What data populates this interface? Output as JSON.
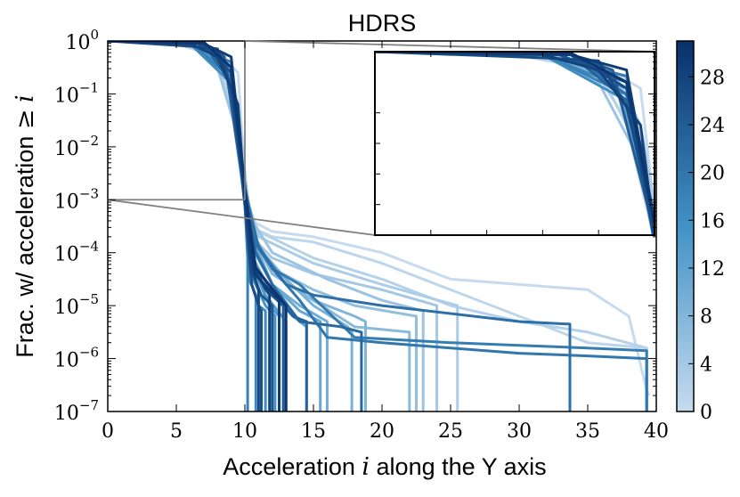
{
  "chart_data": {
    "type": "line",
    "title": "HDRS",
    "xlabel_prefix": "Acceleration ",
    "xlabel_var": "i",
    "xlabel_suffix": " along the Y axis",
    "ylabel_prefix": "Frac. w/ acceleration ",
    "ylabel_rel": "≥",
    "ylabel_var": "i",
    "xlim": [
      0,
      40
    ],
    "ylim_log10": [
      -7,
      0
    ],
    "yscale": "log",
    "grid": false,
    "x_ticks": [
      "0",
      "5",
      "10",
      "15",
      "20",
      "25",
      "30",
      "35",
      "40"
    ],
    "y_ticks": [
      {
        "base": "10",
        "exp": "0"
      },
      {
        "base": "10",
        "exp": "−1"
      },
      {
        "base": "10",
        "exp": "−2"
      },
      {
        "base": "10",
        "exp": "−3"
      },
      {
        "base": "10",
        "exp": "−4"
      },
      {
        "base": "10",
        "exp": "−5"
      },
      {
        "base": "10",
        "exp": "−6"
      },
      {
        "base": "10",
        "exp": "−7"
      }
    ],
    "colorbar": {
      "range": [
        0,
        31
      ],
      "ticks": [
        "0",
        "4",
        "8",
        "12",
        "16",
        "20",
        "24",
        "28"
      ],
      "colormap": "Blues",
      "light_color": "#c6dbef",
      "dark_color": "#08306b"
    },
    "inset": {
      "xlim": [
        0,
        10
      ],
      "ylim_log10": [
        -3,
        0
      ],
      "ticks_labeled": false
    },
    "series_note_count": 31,
    "series": [
      {
        "level": 0,
        "x": [
          0,
          5,
          8,
          9.5,
          10,
          10.5,
          12,
          15,
          20,
          25,
          30,
          35,
          38,
          39.3,
          39.5
        ],
        "y": [
          0,
          -0.05,
          -0.2,
          -0.6,
          -2.6,
          -3.4,
          -3.6,
          -3.7,
          -4.0,
          -4.5,
          -4.6,
          -4.7,
          -5.2,
          -6.6,
          -6.7
        ]
      },
      {
        "level": 1,
        "x": [
          0,
          5,
          8,
          9,
          9.8,
          10.3,
          12,
          15,
          20,
          25,
          30,
          35,
          39.3,
          39.3
        ],
        "y": [
          0,
          -0.05,
          -0.3,
          -1.2,
          -2.7,
          -3.5,
          -3.7,
          -3.8,
          -4.2,
          -4.7,
          -5.2,
          -5.7,
          -5.8,
          -7.0
        ]
      },
      {
        "level": 2,
        "x": [
          0,
          6,
          8,
          9.5,
          10.2,
          11,
          15,
          20,
          25,
          30,
          35,
          39.3,
          39.3
        ],
        "y": [
          0,
          -0.05,
          -0.4,
          -1.5,
          -3.1,
          -3.6,
          -4.1,
          -4.5,
          -5.0,
          -5.3,
          -5.5,
          -5.8,
          -7.0
        ]
      },
      {
        "level": 3,
        "x": [
          0,
          6,
          8.5,
          9.5,
          10.2,
          11,
          15,
          20,
          25.5,
          25.5
        ],
        "y": [
          0,
          -0.02,
          -0.3,
          -1.2,
          -3.0,
          -3.7,
          -4.2,
          -4.6,
          -5.0,
          -7.0
        ]
      },
      {
        "level": 4,
        "x": [
          0,
          7,
          9,
          10,
          10.5,
          12,
          15,
          20,
          24,
          24
        ],
        "y": [
          0,
          -0.05,
          -0.5,
          -2.8,
          -3.7,
          -4.1,
          -4.4,
          -4.7,
          -5.0,
          -7.0
        ]
      },
      {
        "level": 5,
        "x": [
          0,
          6,
          8,
          9.5,
          10.3,
          12,
          16,
          20,
          23,
          23
        ],
        "y": [
          0,
          -0.05,
          -0.5,
          -1.8,
          -3.3,
          -4.0,
          -4.5,
          -4.9,
          -5.1,
          -7.0
        ]
      },
      {
        "level": 6,
        "x": [
          0,
          6,
          8.5,
          9.8,
          10.5,
          12,
          15,
          18,
          22.5,
          22.5
        ],
        "y": [
          0,
          -0.05,
          -0.4,
          -2.4,
          -3.6,
          -4.3,
          -4.7,
          -5.0,
          -5.2,
          -7.0
        ]
      },
      {
        "level": 7,
        "x": [
          0,
          6,
          8.5,
          9.8,
          10.6,
          12,
          15,
          18,
          22,
          22
        ],
        "y": [
          0,
          -0.02,
          -0.3,
          -2.3,
          -3.6,
          -4.4,
          -4.9,
          -5.4,
          -5.5,
          -7.0
        ]
      },
      {
        "level": 8,
        "x": [
          0,
          6,
          9,
          10,
          10.8,
          12,
          15,
          18,
          18.8,
          18.8
        ],
        "y": [
          0,
          -0.05,
          -0.5,
          -2.8,
          -3.8,
          -4.4,
          -4.9,
          -5.2,
          -5.3,
          -7.0
        ]
      },
      {
        "level": 9,
        "x": [
          0,
          7,
          9,
          10,
          11,
          13,
          15,
          17.5,
          17.8,
          17.8
        ],
        "y": [
          0,
          -0.05,
          -0.6,
          -2.9,
          -3.9,
          -4.5,
          -5.0,
          -5.4,
          -5.5,
          -7.0
        ]
      },
      {
        "level": 10,
        "x": [
          0,
          7,
          9,
          10,
          10.7,
          12,
          14,
          16,
          16,
          16
        ],
        "y": [
          0,
          -0.05,
          -0.5,
          -2.8,
          -4.0,
          -4.6,
          -5.0,
          -5.3,
          -5.3,
          -7.0
        ]
      },
      {
        "level": 11,
        "x": [
          0,
          7,
          9,
          10,
          11,
          12,
          14,
          15.5,
          15.5
        ],
        "y": [
          0,
          -0.05,
          -0.6,
          -2.8,
          -4.0,
          -4.6,
          -5.1,
          -5.3,
          -7.0
        ]
      },
      {
        "level": 12,
        "x": [
          0,
          7,
          8.8,
          10,
          10.6,
          12,
          13.5,
          14.5,
          14.5
        ],
        "y": [
          0,
          -0.02,
          -0.7,
          -3.0,
          -4.1,
          -4.8,
          -5.2,
          -5.4,
          -7.0
        ]
      },
      {
        "level": 13,
        "x": [
          0,
          6.5,
          9,
          9.9,
          10.5,
          11.5,
          13,
          13,
          13
        ],
        "y": [
          0,
          -0.03,
          -0.5,
          -2.9,
          -4.2,
          -4.8,
          -5.3,
          -5.3,
          -7.0
        ]
      },
      {
        "level": 14,
        "x": [
          0,
          7,
          9,
          10,
          10.8,
          11.8,
          12.5,
          12.5
        ],
        "y": [
          0,
          -0.05,
          -0.5,
          -2.8,
          -4.4,
          -5.0,
          -5.2,
          -7.0
        ]
      },
      {
        "level": 15,
        "x": [
          0,
          7,
          9,
          10,
          10.6,
          11.5,
          12.2,
          12.2
        ],
        "y": [
          0,
          -0.05,
          -0.6,
          -3.0,
          -4.5,
          -5.0,
          -5.2,
          -7.0
        ]
      },
      {
        "level": 16,
        "x": [
          0,
          6,
          9,
          10,
          10.5,
          11,
          11.5,
          11.5
        ],
        "y": [
          0,
          -0.05,
          -0.8,
          -3.1,
          -4.6,
          -5.0,
          -5.1,
          -7.0
        ]
      },
      {
        "level": 17,
        "x": [
          0,
          6,
          9,
          10,
          10.3,
          10.8,
          10.8
        ],
        "y": [
          0,
          -0.05,
          -0.6,
          -3.0,
          -4.5,
          -4.8,
          -7.0
        ]
      },
      {
        "level": 18,
        "x": [
          0,
          6,
          9,
          10,
          10.2,
          10.2
        ],
        "y": [
          0,
          -0.03,
          -0.7,
          -3.1,
          -4.1,
          -7.0
        ]
      },
      {
        "level": 19,
        "x": [
          0,
          6,
          9,
          9.9,
          10.4,
          12,
          14,
          18,
          25,
          30,
          35,
          39.3,
          39.3
        ],
        "y": [
          0,
          -0.05,
          -0.4,
          -2.5,
          -3.6,
          -4.3,
          -4.6,
          -5.6,
          -5.7,
          -5.75,
          -5.8,
          -5.85,
          -7.0
        ]
      },
      {
        "level": 20,
        "x": [
          0,
          7,
          9,
          10,
          10.7,
          12,
          14,
          16,
          20,
          25,
          30,
          35,
          39.3,
          39.3
        ],
        "y": [
          0,
          -0.05,
          -0.7,
          -3.0,
          -3.8,
          -4.3,
          -4.9,
          -5.6,
          -5.7,
          -5.8,
          -5.9,
          -5.95,
          -6.0,
          -7.0
        ]
      },
      {
        "level": 21,
        "x": [
          0,
          7,
          9,
          10,
          11,
          13,
          15,
          20,
          30,
          33.7,
          33.7
        ],
        "y": [
          0,
          -0.02,
          -0.5,
          -2.8,
          -3.9,
          -4.6,
          -4.8,
          -5.0,
          -5.3,
          -5.35,
          -7.0
        ]
      },
      {
        "level": 22,
        "x": [
          0,
          7,
          9,
          10,
          10.8,
          12,
          14,
          17,
          18.5,
          18.5
        ],
        "y": [
          0,
          -0.05,
          -0.6,
          -2.9,
          -4.0,
          -4.6,
          -5.3,
          -5.4,
          -5.5,
          -7.0
        ]
      },
      {
        "level": 23,
        "x": [
          0,
          7,
          9,
          10,
          10.6,
          12,
          13.5,
          14.5,
          14.5
        ],
        "y": [
          0,
          -0.05,
          -0.8,
          -3.0,
          -4.2,
          -4.7,
          -5.2,
          -5.3,
          -7.0
        ]
      },
      {
        "level": 24,
        "x": [
          0,
          7,
          8.5,
          9.8,
          10.5,
          11.5,
          12.8,
          12.8
        ],
        "y": [
          0,
          -0.05,
          -0.3,
          -2.6,
          -4.1,
          -4.7,
          -5.0,
          -7.0
        ]
      },
      {
        "level": 25,
        "x": [
          0,
          6.5,
          9,
          10,
          10.4,
          11.2,
          12,
          12
        ],
        "y": [
          0,
          -0.03,
          -0.5,
          -2.9,
          -4.3,
          -4.8,
          -5.0,
          -7.0
        ]
      },
      {
        "level": 26,
        "x": [
          0,
          7,
          9,
          10,
          10.5,
          11,
          11.2,
          11.2
        ],
        "y": [
          0,
          -0.05,
          -0.6,
          -3.1,
          -4.6,
          -5.0,
          -5.1,
          -7.0
        ]
      },
      {
        "level": 27,
        "x": [
          0,
          6,
          8,
          9,
          9.9,
          10.4,
          11,
          11
        ],
        "y": [
          0,
          -0.1,
          -0.15,
          -0.9,
          -2.6,
          -4.2,
          -4.7,
          -7.0
        ]
      },
      {
        "level": 28,
        "x": [
          0,
          6,
          8,
          9.5,
          10,
          10.6,
          11.8,
          11.8
        ],
        "y": [
          0,
          -0.05,
          -0.3,
          -1.2,
          -3.0,
          -4.3,
          -4.8,
          -7.0
        ]
      },
      {
        "level": 29,
        "x": [
          0,
          7,
          9,
          10,
          10.7,
          12.5,
          12.5
        ],
        "y": [
          0,
          -0.05,
          -0.3,
          -2.8,
          -4.4,
          -4.9,
          -7.0
        ]
      },
      {
        "level": 30,
        "x": [
          0,
          7,
          9,
          10,
          10.8,
          13,
          13
        ],
        "y": [
          0,
          -0.02,
          -0.5,
          -2.8,
          -4.3,
          -5.0,
          -7.0
        ]
      }
    ]
  }
}
